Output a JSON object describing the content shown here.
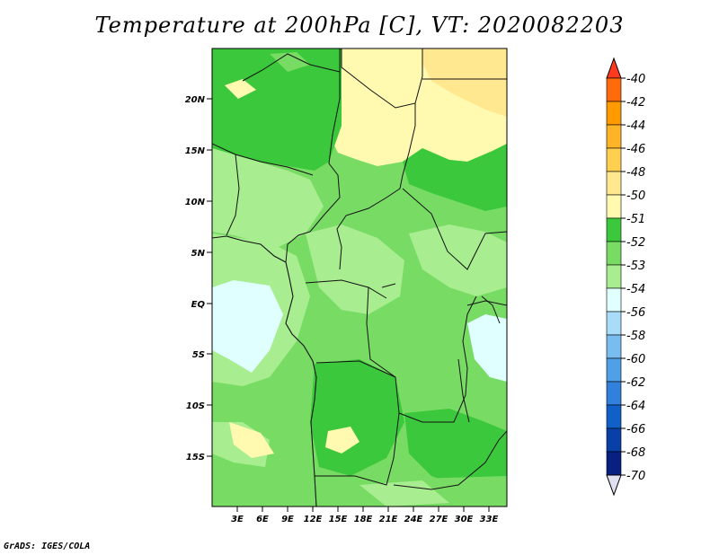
{
  "title": "Temperature at 200hPa [C], VT: 2020082203",
  "footer": "GrADS: IGES/COLA",
  "y_axis_labels": [
    "20N",
    "15N",
    "10N",
    "5N",
    "EQ",
    "5S",
    "10S",
    "15S"
  ],
  "x_axis_labels": [
    "3E",
    "6E",
    "9E",
    "12E",
    "15E",
    "18E",
    "21E",
    "24E",
    "27E",
    "30E",
    "33E"
  ],
  "colorbar": {
    "levels": [
      "-40",
      "-42",
      "-44",
      "-46",
      "-48",
      "-50",
      "-51",
      "-52",
      "-53",
      "-54",
      "-56",
      "-58",
      "-60",
      "-62",
      "-64",
      "-66",
      "-68",
      "-70"
    ],
    "colors": [
      "#ff3a1e",
      "#ff6a0a",
      "#ff9a00",
      "#ffb428",
      "#ffd050",
      "#ffe890",
      "#fffab0",
      "#3cc83c",
      "#78dc64",
      "#a8ee90",
      "#e0ffff",
      "#a8dcf8",
      "#78bcf0",
      "#50a0e8",
      "#3080dc",
      "#1060c8",
      "#0840a8",
      "#082080",
      "#e0e0f0"
    ]
  }
}
